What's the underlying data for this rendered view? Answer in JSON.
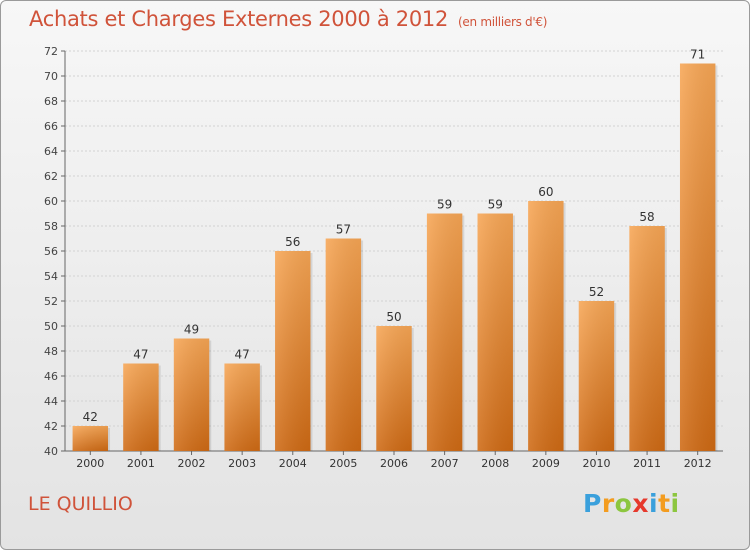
{
  "chart_data": {
    "type": "bar",
    "title": "Achats et Charges Externes 2000 à 2012",
    "subtitle": "(en milliers d'€)",
    "categories": [
      "2000",
      "2001",
      "2002",
      "2003",
      "2004",
      "2005",
      "2006",
      "2007",
      "2008",
      "2009",
      "2010",
      "2011",
      "2012"
    ],
    "values": [
      42,
      47,
      49,
      47,
      56,
      57,
      50,
      59,
      59,
      60,
      52,
      58,
      71
    ],
    "xlabel": "",
    "ylabel": "",
    "ylim": [
      40,
      72
    ],
    "yticks": [
      40,
      42,
      44,
      46,
      48,
      50,
      52,
      54,
      56,
      58,
      60,
      62,
      64,
      66,
      68,
      70,
      72
    ],
    "grid": true,
    "colors": {
      "bar_top": "#f7a655",
      "bar_bottom": "#cf6a14",
      "title": "#d0533a"
    }
  },
  "commune_name": "LE QUILLIO",
  "logo": {
    "letters": [
      "P",
      "r",
      "o",
      "x",
      "i",
      "t",
      "i"
    ],
    "colors": [
      "#3aa0dc",
      "#f39c1f",
      "#8cc63f",
      "#e6392d",
      "#3aa0dc",
      "#f39c1f",
      "#8cc63f"
    ]
  }
}
